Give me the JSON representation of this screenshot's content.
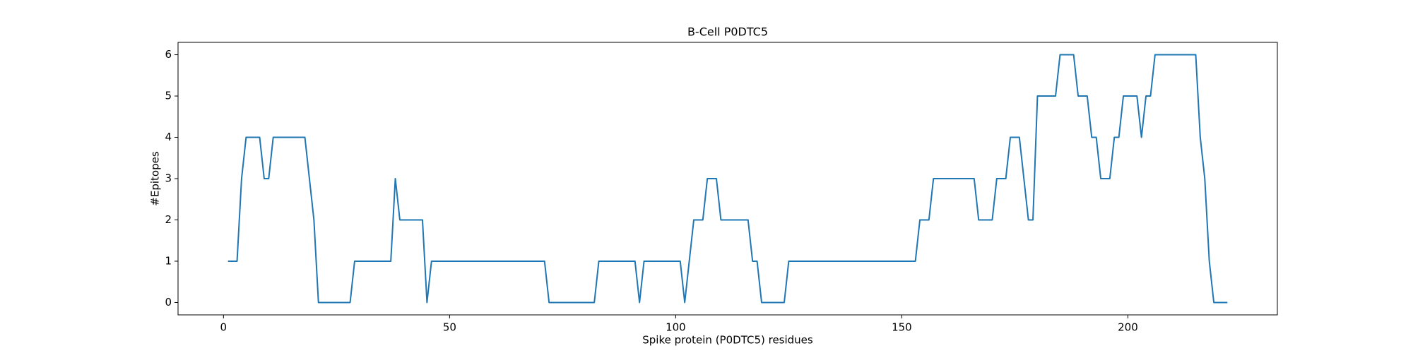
{
  "chart_data": {
    "type": "line",
    "title": "B-Cell P0DTC5",
    "x_label": "Spike protein (P0DTC5) residues",
    "y_label": "#Epitopes",
    "x": [
      1,
      2,
      3,
      4,
      5,
      6,
      7,
      8,
      9,
      10,
      11,
      12,
      13,
      14,
      15,
      16,
      17,
      18,
      19,
      20,
      21,
      22,
      23,
      24,
      25,
      26,
      27,
      28,
      29,
      30,
      31,
      32,
      33,
      34,
      35,
      36,
      37,
      38,
      39,
      40,
      41,
      42,
      43,
      44,
      45,
      46,
      47,
      48,
      49,
      50,
      51,
      52,
      53,
      54,
      55,
      56,
      57,
      58,
      59,
      60,
      61,
      62,
      63,
      64,
      65,
      66,
      67,
      68,
      69,
      70,
      71,
      72,
      73,
      74,
      75,
      76,
      77,
      78,
      79,
      80,
      81,
      82,
      83,
      84,
      85,
      86,
      87,
      88,
      89,
      90,
      91,
      92,
      93,
      94,
      95,
      96,
      97,
      98,
      99,
      100,
      101,
      102,
      103,
      104,
      105,
      106,
      107,
      108,
      109,
      110,
      111,
      112,
      113,
      114,
      115,
      116,
      117,
      118,
      119,
      120,
      121,
      122,
      123,
      124,
      125,
      126,
      127,
      128,
      129,
      130,
      131,
      132,
      133,
      134,
      135,
      136,
      137,
      138,
      139,
      140,
      141,
      142,
      143,
      144,
      145,
      146,
      147,
      148,
      149,
      150,
      151,
      152,
      153,
      154,
      155,
      156,
      157,
      158,
      159,
      160,
      161,
      162,
      163,
      164,
      165,
      166,
      167,
      168,
      169,
      170,
      171,
      172,
      173,
      174,
      175,
      176,
      177,
      178,
      179,
      180,
      181,
      182,
      183,
      184,
      185,
      186,
      187,
      188,
      189,
      190,
      191,
      192,
      193,
      194,
      195,
      196,
      197,
      198,
      199,
      200,
      201,
      202,
      203,
      204,
      205,
      206,
      207,
      208,
      209,
      210,
      211,
      212,
      213,
      214,
      215,
      216,
      217,
      218,
      219,
      220,
      221,
      222
    ],
    "series": [
      {
        "color": "#1f77b4",
        "values": [
          1,
          1,
          1,
          3,
          4,
          4,
          4,
          4,
          3,
          3,
          4,
          4,
          4,
          4,
          4,
          4,
          4,
          4,
          3,
          2,
          0,
          0,
          0,
          0,
          0,
          0,
          0,
          0,
          1,
          1,
          1,
          1,
          1,
          1,
          1,
          1,
          1,
          3,
          2,
          2,
          2,
          2,
          2,
          2,
          0,
          1,
          1,
          1,
          1,
          1,
          1,
          1,
          1,
          1,
          1,
          1,
          1,
          1,
          1,
          1,
          1,
          1,
          1,
          1,
          1,
          1,
          1,
          1,
          1,
          1,
          1,
          0,
          0,
          0,
          0,
          0,
          0,
          0,
          0,
          0,
          0,
          0,
          1,
          1,
          1,
          1,
          1,
          1,
          1,
          1,
          1,
          0,
          1,
          1,
          1,
          1,
          1,
          1,
          1,
          1,
          1,
          0,
          1,
          2,
          2,
          2,
          3,
          3,
          3,
          2,
          2,
          2,
          2,
          2,
          2,
          2,
          1,
          1,
          0,
          0,
          0,
          0,
          0,
          0,
          1,
          1,
          1,
          1,
          1,
          1,
          1,
          1,
          1,
          1,
          1,
          1,
          1,
          1,
          1,
          1,
          1,
          1,
          1,
          1,
          1,
          1,
          1,
          1,
          1,
          1,
          1,
          1,
          1,
          2,
          2,
          2,
          3,
          3,
          3,
          3,
          3,
          3,
          3,
          3,
          3,
          3,
          2,
          2,
          2,
          2,
          3,
          3,
          3,
          4,
          4,
          4,
          3,
          2,
          2,
          5,
          5,
          5,
          5,
          5,
          6,
          6,
          6,
          6,
          5,
          5,
          5,
          4,
          4,
          3,
          3,
          3,
          4,
          4,
          5,
          5,
          5,
          5,
          4,
          5,
          5,
          6,
          6,
          6,
          6,
          6,
          6,
          6,
          6,
          6,
          6,
          4,
          3,
          1,
          0,
          0,
          0,
          0
        ]
      }
    ],
    "xlim": [
      -10.05,
      233.05
    ],
    "xticks": [
      0,
      50,
      100,
      150,
      200
    ],
    "ylim": [
      -0.3,
      6.3
    ],
    "yticks": [
      0,
      1,
      2,
      3,
      4,
      5,
      6
    ]
  }
}
